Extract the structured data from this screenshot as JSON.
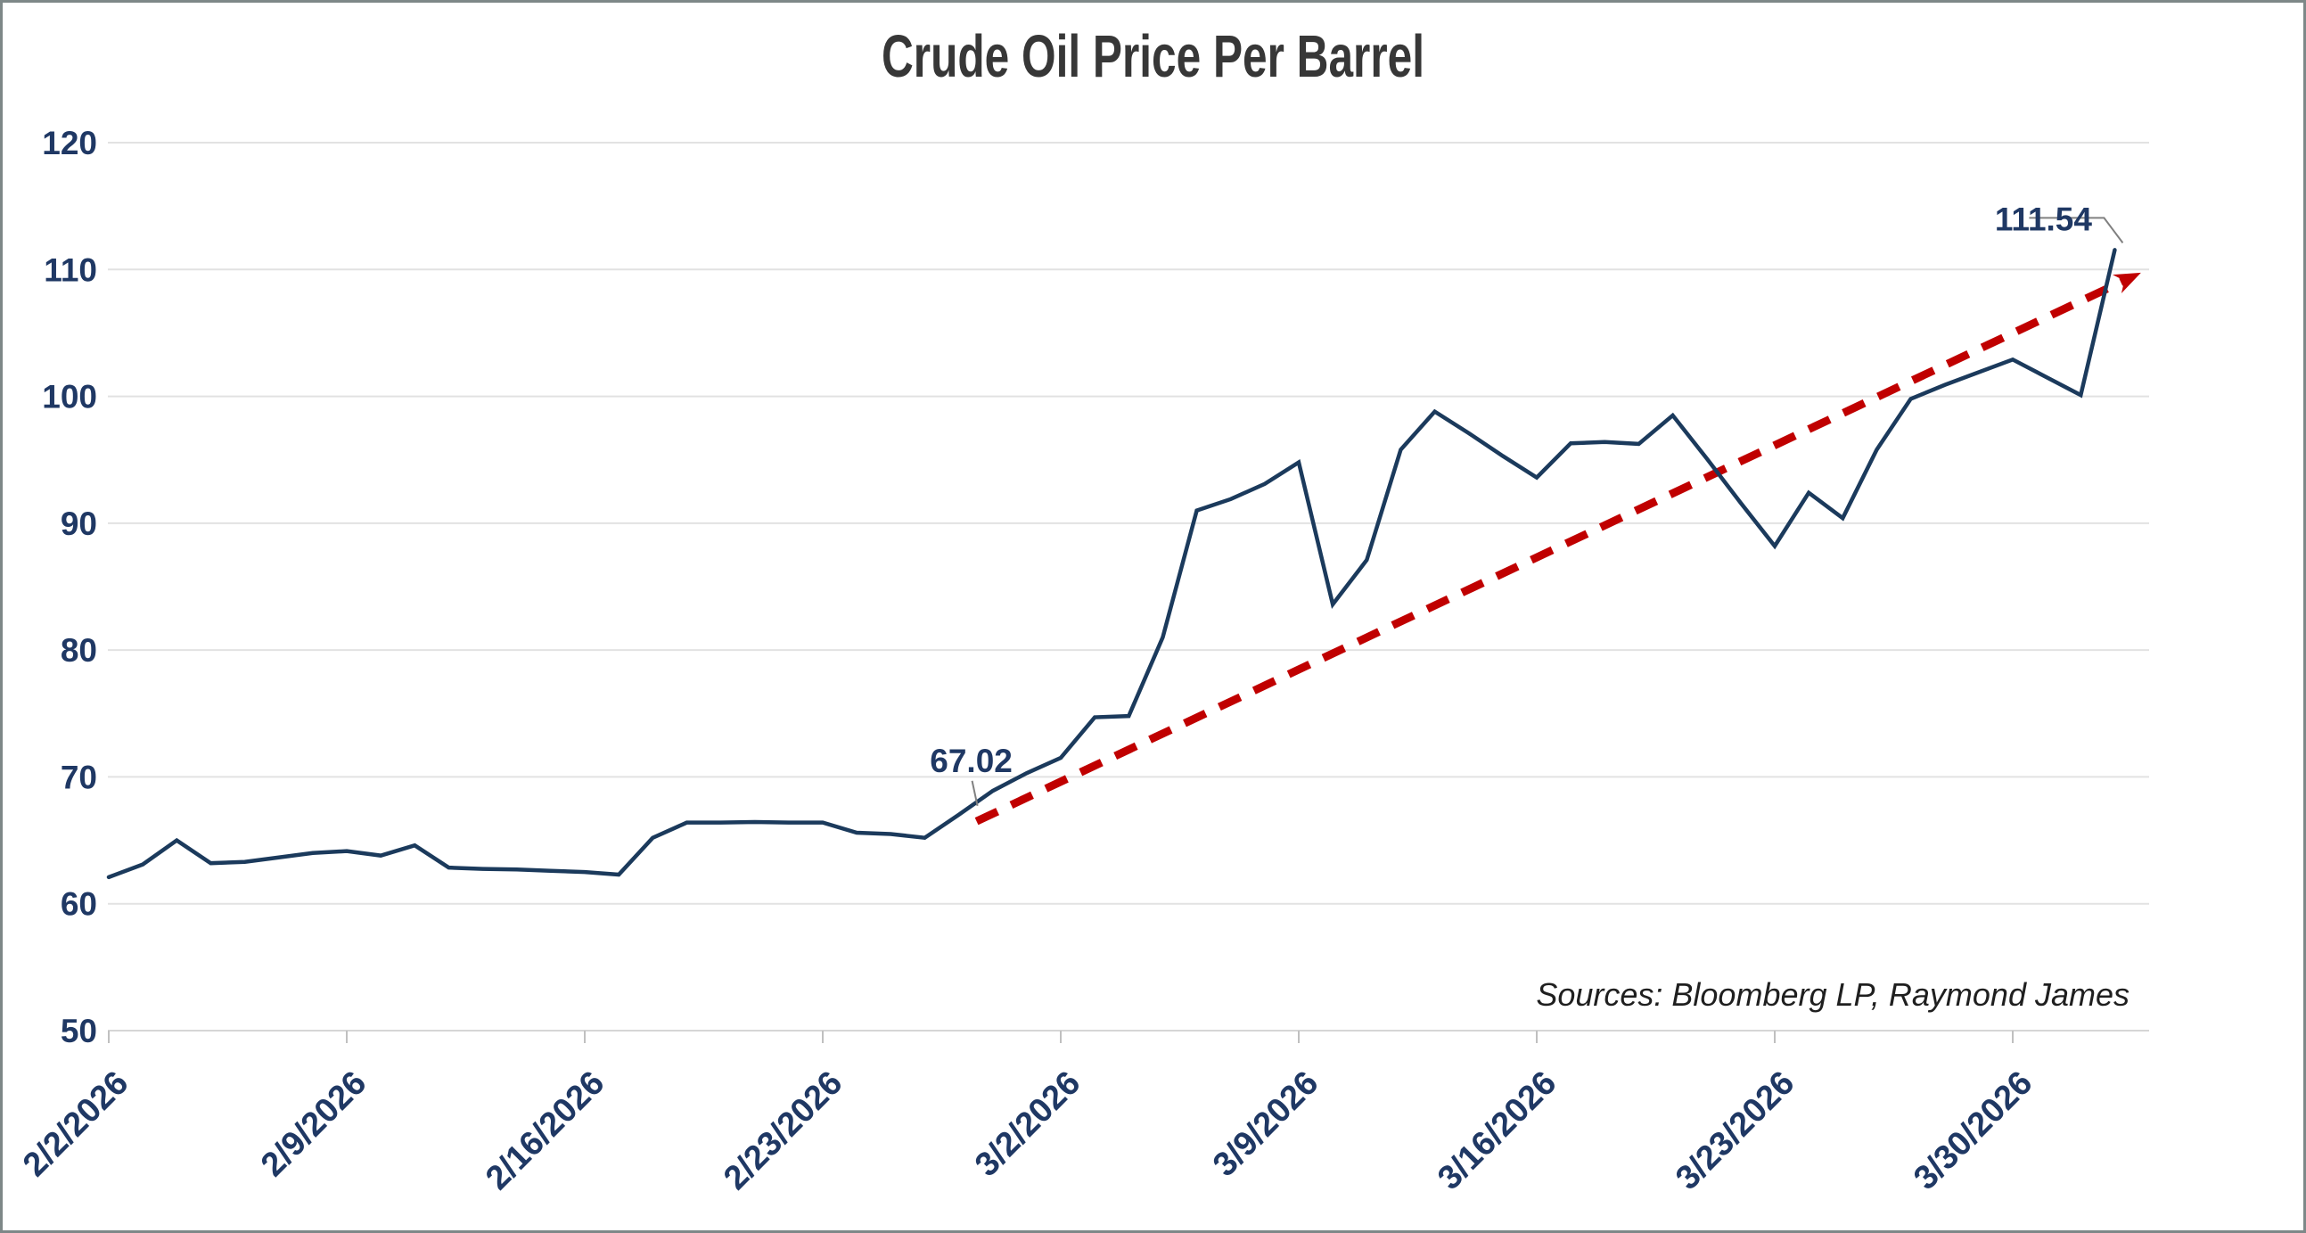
{
  "page": {
    "title": "Crude Oil Price Per Barrel",
    "source_note": "Sources: Bloomberg LP, Raymond James"
  },
  "colors": {
    "series_line": "#1b3a5c",
    "trend_line": "#c00000",
    "axis_text": "#1f3864",
    "title_text": "#373737",
    "gridline": "#e2e2e2",
    "axis_line": "#d6d6d6",
    "tick_mark": "#c0c0c0",
    "callout_line": "#808080",
    "source_text": "#1f1f1f",
    "background": "#ffffff"
  },
  "chart_data": {
    "type": "line",
    "title": "Crude Oil Price Per Barrel",
    "xlabel": "",
    "ylabel": "",
    "ylim": [
      50,
      120
    ],
    "y_ticks": [
      120,
      110,
      100,
      90,
      80,
      70,
      60,
      50
    ],
    "x_tick_labels": [
      "2/2/2026",
      "2/9/2026",
      "2/16/2026",
      "2/23/2026",
      "3/2/2026",
      "3/9/2026",
      "3/16/2026",
      "3/23/2026",
      "3/30/2026"
    ],
    "grid": "horizontal",
    "legend": "none",
    "series": [
      {
        "name": "Crude Oil Price Per Barrel",
        "color": "#1b3a5c",
        "dates": [
          "2/2/2026",
          "2/3/2026",
          "2/4/2026",
          "2/5/2026",
          "2/6/2026",
          "2/7/2026",
          "2/8/2026",
          "2/9/2026",
          "2/10/2026",
          "2/11/2026",
          "2/12/2026",
          "2/13/2026",
          "2/14/2026",
          "2/15/2026",
          "2/16/2026",
          "2/17/2026",
          "2/18/2026",
          "2/19/2026",
          "2/20/2026",
          "2/21/2026",
          "2/22/2026",
          "2/23/2026",
          "2/24/2026",
          "2/25/2026",
          "2/26/2026",
          "2/27/2026",
          "2/28/2026",
          "3/1/2026",
          "3/2/2026",
          "3/3/2026",
          "3/4/2026",
          "3/5/2026",
          "3/6/2026",
          "3/7/2026",
          "3/8/2026",
          "3/9/2026",
          "3/10/2026",
          "3/11/2026",
          "3/12/2026",
          "3/13/2026",
          "3/14/2026",
          "3/15/2026",
          "3/16/2026",
          "3/17/2026",
          "3/18/2026",
          "3/19/2026",
          "3/20/2026",
          "3/21/2026",
          "3/22/2026",
          "3/23/2026",
          "3/24/2026",
          "3/25/2026",
          "3/26/2026",
          "3/27/2026",
          "3/28/2026",
          "3/29/2026",
          "3/30/2026",
          "3/31/2026",
          "4/1/2026",
          "4/2/2026"
        ],
        "values": [
          62.1,
          63.1,
          65.0,
          63.2,
          63.3,
          63.65,
          64.0,
          64.15,
          63.8,
          64.6,
          62.85,
          62.75,
          62.7,
          62.6,
          62.5,
          62.3,
          65.2,
          66.4,
          66.4,
          66.45,
          66.4,
          66.4,
          65.6,
          65.5,
          65.2,
          67.02,
          68.9,
          70.3,
          71.5,
          74.7,
          74.8,
          81.0,
          91.0,
          91.9,
          93.1,
          94.8,
          83.6,
          87.1,
          95.8,
          98.8,
          97.1,
          95.3,
          93.6,
          96.3,
          96.4,
          96.25,
          98.5,
          95.1,
          91.6,
          88.2,
          92.4,
          90.4,
          95.8,
          99.8,
          100.9,
          101.9,
          102.9,
          101.5,
          100.1,
          111.54
        ]
      }
    ],
    "trend_line": {
      "style": "dashed",
      "color": "#c00000",
      "arrow_end": true,
      "start": {
        "date": "2/27/2026",
        "value": 66.5
      },
      "end": {
        "date": "4/2/2026",
        "value": 109.3
      }
    },
    "annotations": [
      {
        "label": "67.02",
        "date": "2/27/2026",
        "value": 67.02,
        "offset": [
          14,
          -48
        ],
        "callout": [
          [
            15,
            -38
          ],
          [
            21,
            -10
          ]
        ]
      },
      {
        "label": "111.54",
        "date": "4/2/2026",
        "value": 111.54,
        "offset": [
          -80,
          -22
        ],
        "callout": [
          [
            -96,
            -36
          ],
          [
            -12,
            -36
          ],
          [
            9,
            -8
          ]
        ]
      }
    ]
  }
}
